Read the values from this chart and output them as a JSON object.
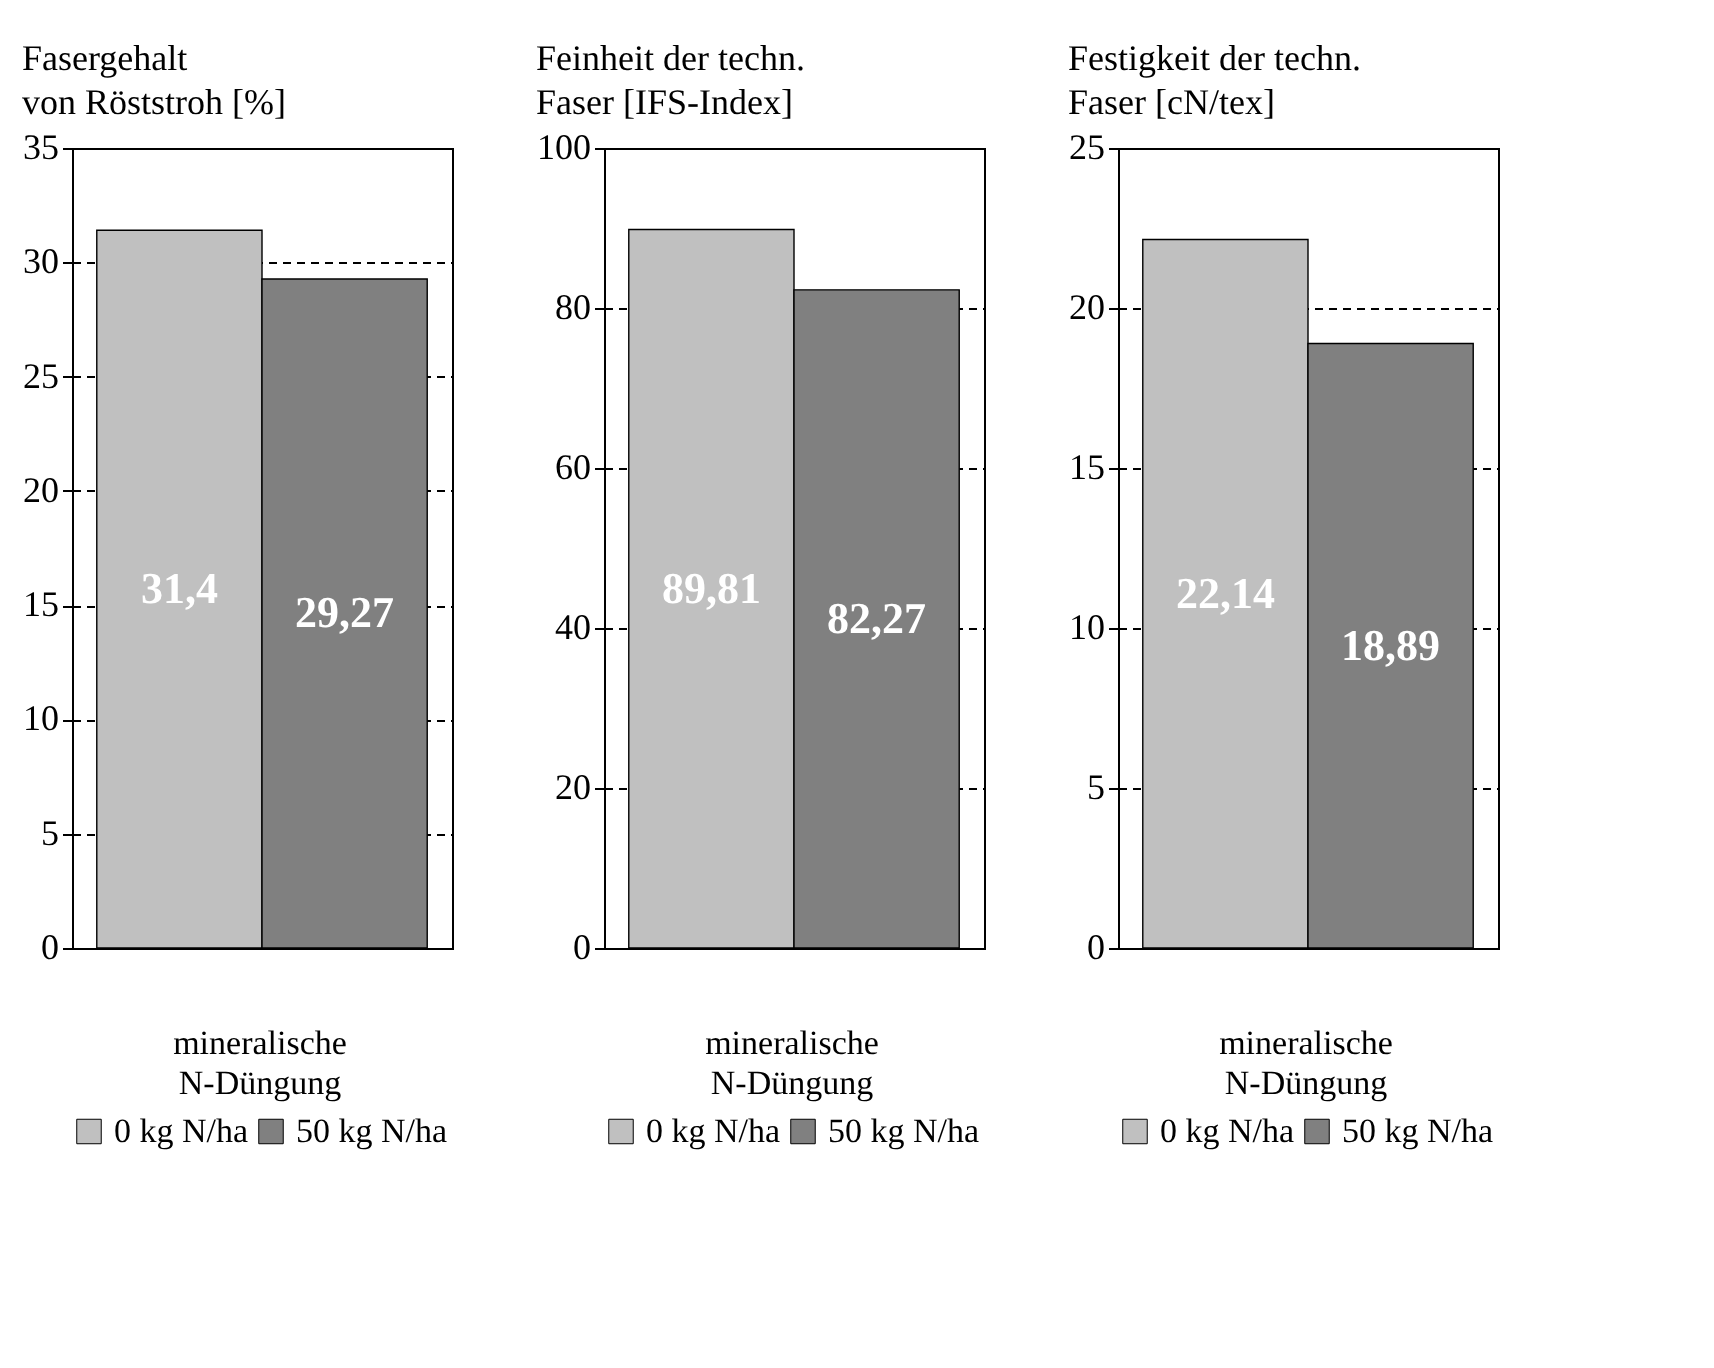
{
  "chart_data": [
    {
      "type": "bar",
      "title": [
        "Fasergehalt",
        "von Röststroh [%]"
      ],
      "categories": [
        null
      ],
      "ylim": [
        0,
        35
      ],
      "yticks": [
        0,
        5,
        10,
        15,
        20,
        25,
        30,
        35
      ],
      "grid": "y",
      "legend": "bottom",
      "legend_title": [
        "mineralische",
        "N-Düngung"
      ],
      "series": [
        {
          "name": "0 kg N/ha",
          "color": "#c0c0c0",
          "values": [
            31.4
          ],
          "value_labels": [
            "31,4"
          ]
        },
        {
          "name": "50 kg N/ha",
          "color": "#808080",
          "values": [
            29.27
          ],
          "value_labels": [
            "29,27"
          ]
        }
      ]
    },
    {
      "type": "bar",
      "title": [
        "Feinheit der techn.",
        "Faser [IFS-Index]"
      ],
      "categories": [
        null
      ],
      "ylim": [
        0,
        100
      ],
      "yticks": [
        0,
        20,
        40,
        60,
        80,
        100
      ],
      "grid": "y",
      "legend": "bottom",
      "legend_title": [
        "mineralische",
        "N-Düngung"
      ],
      "series": [
        {
          "name": "0 kg N/ha",
          "color": "#c0c0c0",
          "values": [
            89.81
          ],
          "value_labels": [
            "89,81"
          ]
        },
        {
          "name": "50 kg N/ha",
          "color": "#808080",
          "values": [
            82.27
          ],
          "value_labels": [
            "82,27"
          ]
        }
      ]
    },
    {
      "type": "bar",
      "title": [
        "Festigkeit der techn.",
        "Faser [cN/tex]"
      ],
      "categories": [
        null
      ],
      "ylim": [
        0,
        25
      ],
      "yticks": [
        0,
        5,
        10,
        15,
        20,
        25
      ],
      "grid": "y",
      "legend": "bottom",
      "legend_title": [
        "mineralische",
        "N-Düngung"
      ],
      "series": [
        {
          "name": "0 kg N/ha",
          "color": "#c0c0c0",
          "values": [
            22.14
          ],
          "value_labels": [
            "22,14"
          ]
        },
        {
          "name": "50 kg N/ha",
          "color": "#808080",
          "values": [
            18.89
          ],
          "value_labels": [
            "18,89"
          ]
        }
      ]
    }
  ]
}
